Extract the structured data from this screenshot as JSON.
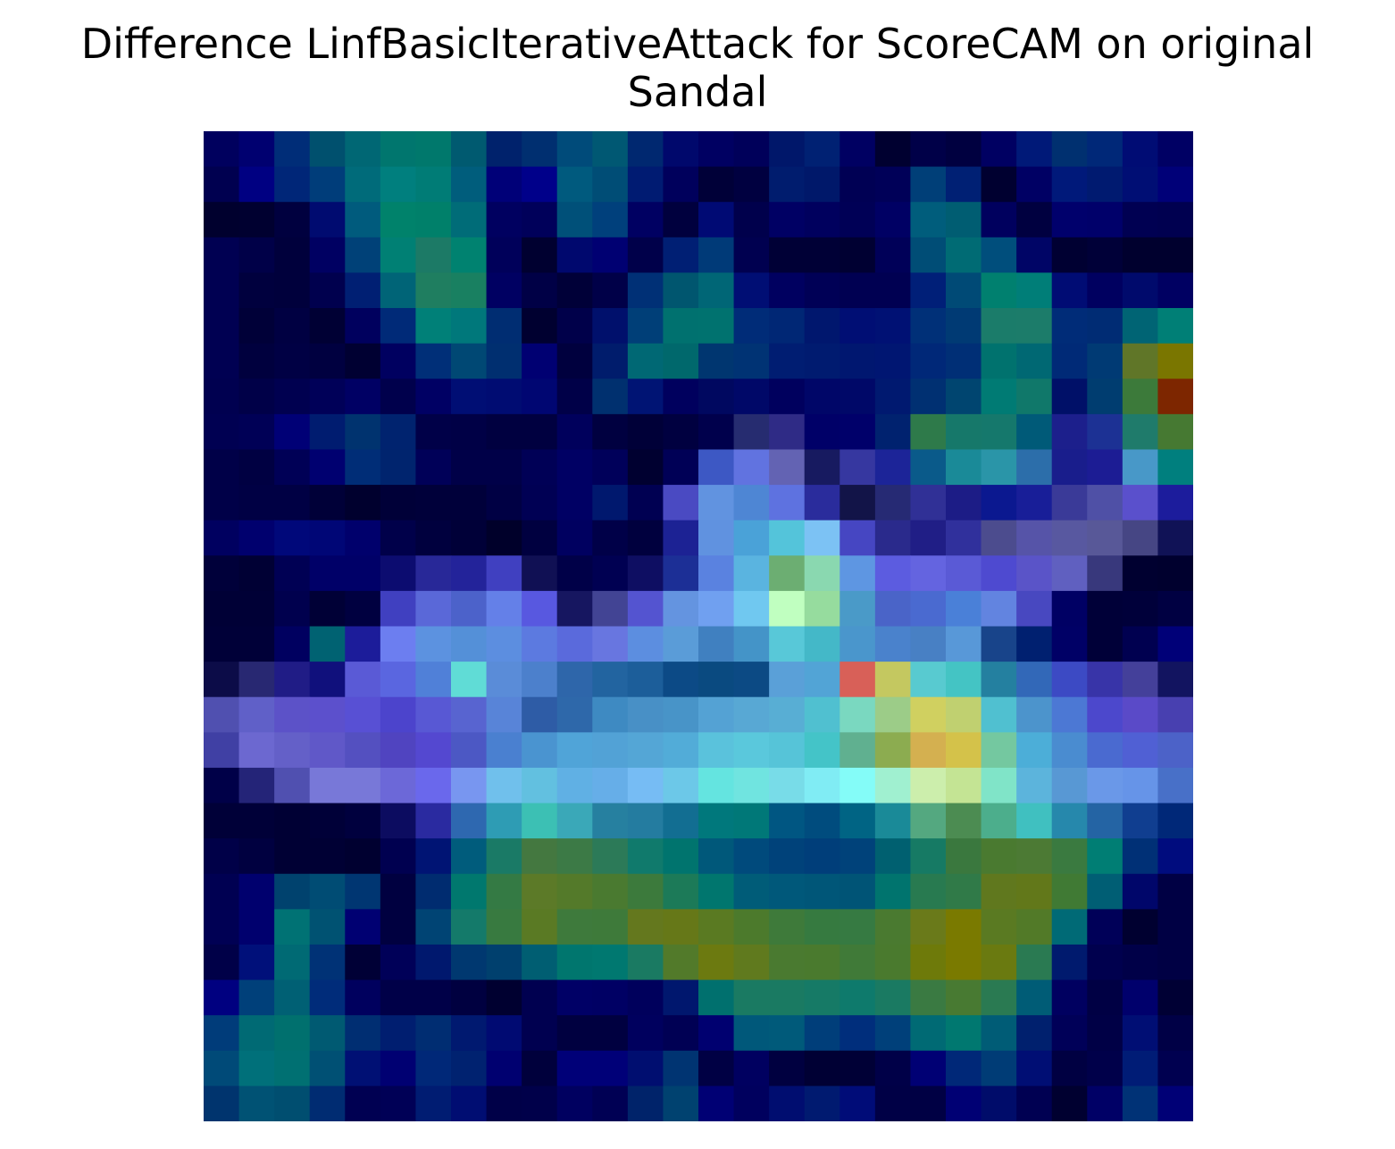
{
  "chart_data": {
    "type": "heatmap",
    "title_lines": [
      "Difference LinfBasicIterativeAttack for ScoreCAM on original",
      "Sandal"
    ],
    "rows": 28,
    "cols": 28,
    "axes_visible": false,
    "colormap": "dark-blue overlay heatmap (low = dark navy, mid = teal/cyan, high = yellow/red)",
    "cells": [
      [
        "#00005e",
        "#000070",
        "#002d78",
        "#00506e",
        "#006774",
        "#00766e",
        "#00786c",
        "#005a70",
        "#00226c",
        "#002f70",
        "#004b7a",
        "#005873",
        "#002870",
        "#00086c",
        "#000062",
        "#00005a",
        "#00176a",
        "#002173",
        "#000062",
        "#000030",
        "#000048",
        "#000040",
        "#000062",
        "#001978",
        "#003070",
        "#002878",
        "#000c74",
        "#000064"
      ],
      [
        "#000050",
        "#000082",
        "#002678",
        "#003d7a",
        "#006b7a",
        "#007f7e",
        "#007c76",
        "#005d7c",
        "#000078",
        "#00008a",
        "#005a7e",
        "#004d76",
        "#001b72",
        "#00005c",
        "#000038",
        "#000040",
        "#001c6e",
        "#00186a",
        "#000054",
        "#000058",
        "#003f78",
        "#002074",
        "#000030",
        "#000064",
        "#00197a",
        "#001a70",
        "#000e74",
        "#000078"
      ],
      [
        "#00002e",
        "#000030",
        "#00003f",
        "#000b70",
        "#005b7d",
        "#00826b",
        "#00806a",
        "#006c78",
        "#000060",
        "#00005a",
        "#005079",
        "#00407c",
        "#000062",
        "#00003e",
        "#000a74",
        "#00004c",
        "#000064",
        "#00005e",
        "#000056",
        "#000064",
        "#005d7c",
        "#005d72",
        "#00005e",
        "#000040",
        "#00006c",
        "#00006a",
        "#000052",
        "#000050"
      ],
      [
        "#000052",
        "#000048",
        "#00003c",
        "#000062",
        "#004178",
        "#008074",
        "#1c7a66",
        "#008270",
        "#00005a",
        "#000030",
        "#00086e",
        "#000072",
        "#00004a",
        "#001f74",
        "#003a78",
        "#000050",
        "#000036",
        "#000036",
        "#000032",
        "#000058",
        "#004d76",
        "#006b74",
        "#004e7c",
        "#000566",
        "#000032",
        "#000038",
        "#00002e",
        "#00002e"
      ],
      [
        "#000052",
        "#00003e",
        "#00003c",
        "#00004e",
        "#001f73",
        "#006477",
        "#1f7e60",
        "#198061",
        "#000062",
        "#000046",
        "#000038",
        "#000048",
        "#003076",
        "#00566f",
        "#006676",
        "#000e74",
        "#000060",
        "#000056",
        "#000052",
        "#000052",
        "#001f78",
        "#004a76",
        "#00806f",
        "#007e78",
        "#000c74",
        "#000060",
        "#000a6c",
        "#000062"
      ],
      [
        "#000052",
        "#000038",
        "#000042",
        "#000034",
        "#00005e",
        "#002a78",
        "#008078",
        "#00787b",
        "#002d72",
        "#000030",
        "#00004a",
        "#00106c",
        "#003f78",
        "#00716f",
        "#00726f",
        "#002c78",
        "#002775",
        "#00176e",
        "#000e74",
        "#001174",
        "#003078",
        "#003a74",
        "#1b7c6a",
        "#1c7c6a",
        "#002c78",
        "#002c74",
        "#006474",
        "#007f76"
      ],
      [
        "#000052",
        "#00003e",
        "#000044",
        "#000040",
        "#000032",
        "#000060",
        "#002f78",
        "#004874",
        "#002f70",
        "#000072",
        "#00003e",
        "#001c6c",
        "#006874",
        "#00686c",
        "#003670",
        "#003374",
        "#001d72",
        "#001b70",
        "#001770",
        "#001672",
        "#002878",
        "#002f76",
        "#00726e",
        "#006873",
        "#002a77",
        "#003a74",
        "#607628",
        "#7a7600"
      ],
      [
        "#000050",
        "#000048",
        "#000050",
        "#000058",
        "#000064",
        "#00004c",
        "#000064",
        "#000e74",
        "#000c72",
        "#000672",
        "#000048",
        "#00306f",
        "#001474",
        "#00005e",
        "#000860",
        "#000868",
        "#00005e",
        "#000668",
        "#000868",
        "#001970",
        "#003072",
        "#004570",
        "#007b74",
        "#10786a",
        "#001068",
        "#003d70",
        "#3c7a3a",
        "#7d2600"
      ],
      [
        "#000052",
        "#000056",
        "#000076",
        "#001c70",
        "#00336f",
        "#00236f",
        "#000048",
        "#000046",
        "#000040",
        "#000040",
        "#00005c",
        "#000040",
        "#000038",
        "#000040",
        "#00004c",
        "#262c70",
        "#2f2b86",
        "#000068",
        "#00006a",
        "#00226f",
        "#2e7a4a",
        "#16786a",
        "#15786c",
        "#005a78",
        "#1c1f8c",
        "#1c3194",
        "#1f7b6b",
        "#467932"
      ],
      [
        "#000048",
        "#000042",
        "#000056",
        "#000070",
        "#002d77",
        "#00246e",
        "#000058",
        "#000048",
        "#000048",
        "#000056",
        "#000064",
        "#00005a",
        "#000030",
        "#000056",
        "#3d58c4",
        "#6173e0",
        "#6363b3",
        "#171a60",
        "#3637a0",
        "#1c2498",
        "#0a5a8a",
        "#1a8a98",
        "#2a95a8",
        "#2c6eaa",
        "#191d8c",
        "#1c1c94",
        "#4898c8",
        "#007f7e"
      ],
      [
        "#000048",
        "#000044",
        "#000044",
        "#000038",
        "#00002e",
        "#000038",
        "#00003a",
        "#00003a",
        "#000044",
        "#000054",
        "#000064",
        "#00186e",
        "#000052",
        "#4a4ac2",
        "#6193e0",
        "#4e86d4",
        "#5e72e0",
        "#2a2c9c",
        "#121448",
        "#262a74",
        "#303096",
        "#1c1c86",
        "#0b1890",
        "#181e98",
        "#3a3a98",
        "#4f50a6",
        "#5a50cc",
        "#1c1c9c"
      ],
      [
        "#000060",
        "#00006e",
        "#00087a",
        "#000676",
        "#00006c",
        "#00004a",
        "#00003e",
        "#000038",
        "#00002a",
        "#000040",
        "#000060",
        "#000048",
        "#00003e",
        "#1c2294",
        "#6092e0",
        "#4aa2d8",
        "#54c4da",
        "#7cc2f4",
        "#4646c2",
        "#2a2a8c",
        "#201e86",
        "#30309c",
        "#4c4c8e",
        "#5654a8",
        "#5858a0",
        "#585898",
        "#464684",
        "#101256"
      ],
      [
        "#00003a",
        "#000034",
        "#000054",
        "#000068",
        "#000068",
        "#0c0c70",
        "#282898",
        "#23239a",
        "#4040c0",
        "#101054",
        "#000048",
        "#000052",
        "#0e0e62",
        "#1c2f96",
        "#5a82e0",
        "#5ab4e0",
        "#6cae72",
        "#8ad8b0",
        "#5e96e2",
        "#5c5ce0",
        "#6464e0",
        "#5a5ad6",
        "#4e4ad0",
        "#5a54c8",
        "#6060c0",
        "#38387c",
        "#000030",
        "#00002e"
      ],
      [
        "#000036",
        "#000036",
        "#00004e",
        "#000036",
        "#000040",
        "#4040c0",
        "#5a68d8",
        "#4c62ca",
        "#6480e8",
        "#5858e0",
        "#161660",
        "#424494",
        "#5454d0",
        "#6494e0",
        "#70a0f0",
        "#70c8f0",
        "#c0ffc0",
        "#96dc9e",
        "#4a9ac8",
        "#4a64c8",
        "#4a6ad0",
        "#4a80d8",
        "#6284e0",
        "#4848c0",
        "#000064",
        "#000038",
        "#00003a",
        "#000042"
      ],
      [
        "#000038",
        "#000038",
        "#000060",
        "#006272",
        "#1c1c9a",
        "#6c7ef0",
        "#5c92e0",
        "#5490d8",
        "#5c8ee0",
        "#5c7ae0",
        "#5a6adc",
        "#6876e0",
        "#5c8ee0",
        "#5a9cd8",
        "#4080c0",
        "#4494c8",
        "#58c8d8",
        "#44b8c8",
        "#4a96cc",
        "#4a82cc",
        "#4880c4",
        "#5898d8",
        "#18448a",
        "#002070",
        "#000066",
        "#000038",
        "#000050",
        "#000078"
      ],
      [
        "#0c0c48",
        "#282872",
        "#201c86",
        "#10107c",
        "#5a5ad6",
        "#5a66e0",
        "#5080d8",
        "#60dcd6",
        "#5a8cd8",
        "#4c80cc",
        "#2e66aa",
        "#2264a0",
        "#1c5e9a",
        "#0c4a86",
        "#0a4a80",
        "#0c4a84",
        "#5aa0d8",
        "#52a4d6",
        "#d86058",
        "#c4c860",
        "#58cad0",
        "#44c4c4",
        "#2480a0",
        "#3268b8",
        "#3c4ac4",
        "#3834a8",
        "#44409a",
        "#121460"
      ],
      [
        "#5050b0",
        "#6060c8",
        "#5c52c8",
        "#5c50cc",
        "#5850d4",
        "#4c44cc",
        "#5858d4",
        "#5864d0",
        "#5884d8",
        "#2e5ca6",
        "#2e68aa",
        "#3e8ac2",
        "#4890c6",
        "#4894c8",
        "#54a2d4",
        "#58a8d4",
        "#58aed4",
        "#50c0d0",
        "#7ad8c0",
        "#9ccc88",
        "#d0d060",
        "#c0d070",
        "#50c0d0",
        "#4c94cc",
        "#4c78d4",
        "#4c48cc",
        "#5a4ac8",
        "#4840b0"
      ],
      [
        "#4040a4",
        "#6c68d0",
        "#6460c8",
        "#6058c8",
        "#5450c0",
        "#5044c0",
        "#5448d0",
        "#4c58c4",
        "#4a80d0",
        "#4a94d0",
        "#50a4d8",
        "#52a2d6",
        "#54a6d6",
        "#52acd8",
        "#5ac2dc",
        "#5ac8dc",
        "#56c4d8",
        "#44c4c8",
        "#60b090",
        "#8cac50",
        "#d4b050",
        "#d4c24a",
        "#74c8a0",
        "#4caed8",
        "#4a8cd0",
        "#4a6ad0",
        "#5060d4",
        "#4c62c8"
      ],
      [
        "#000048",
        "#242478",
        "#5050b0",
        "#7878d8",
        "#7878d8",
        "#6c68d8",
        "#6a68ec",
        "#7896f0",
        "#70c0ec",
        "#62c0e0",
        "#60b0e4",
        "#66aee8",
        "#76bcf4",
        "#6cc8e8",
        "#64e4e0",
        "#70e4e0",
        "#78dce8",
        "#80ecf4",
        "#84fcf8",
        "#a0f0d0",
        "#cceeac",
        "#c4e494",
        "#80e4c8",
        "#5cb4dc",
        "#5898d4",
        "#6a98e8",
        "#6694e8",
        "#4870c8"
      ],
      [
        "#000038",
        "#000038",
        "#000034",
        "#000038",
        "#00003e",
        "#0c0c60",
        "#2a2aa0",
        "#2e68b0",
        "#2e9cb4",
        "#3cc0b4",
        "#3aa8b8",
        "#2680a0",
        "#247ca0",
        "#126e92",
        "#00787c",
        "#007878",
        "#005682",
        "#004c7e",
        "#006484",
        "#1a8a98",
        "#54a880",
        "#4c8c52",
        "#4cae8c",
        "#40c0c0",
        "#2688ac",
        "#2464a4",
        "#103e90",
        "#002878"
      ],
      [
        "#000048",
        "#000040",
        "#000034",
        "#000034",
        "#000030",
        "#000050",
        "#001474",
        "#005c7c",
        "#1a7a66",
        "#447840",
        "#3c7a46",
        "#2c7a58",
        "#107a6c",
        "#00746e",
        "#00587a",
        "#004a7c",
        "#00427a",
        "#003e7a",
        "#00427a",
        "#006070",
        "#167a64",
        "#3a783e",
        "#4a7a30",
        "#4c7a34",
        "#3a7a40",
        "#007e74",
        "#003076",
        "#000c7e"
      ],
      [
        "#000052",
        "#00006e",
        "#00426e",
        "#004c74",
        "#003672",
        "#000040",
        "#002c70",
        "#00786e",
        "#347a44",
        "#5c7a28",
        "#547a2a",
        "#4a7a30",
        "#3c7a3c",
        "#1c7a58",
        "#00766e",
        "#005c78",
        "#00587a",
        "#005678",
        "#005476",
        "#00746e",
        "#287a50",
        "#307a48",
        "#60781e",
        "#62781a",
        "#407a34",
        "#005e74",
        "#00066a",
        "#000044"
      ],
      [
        "#000054",
        "#00006e",
        "#007274",
        "#005272",
        "#000072",
        "#000040",
        "#004474",
        "#147a6a",
        "#387a40",
        "#5a7a24",
        "#3e7a3c",
        "#3e7a3a",
        "#64781e",
        "#667818",
        "#5a7a22",
        "#4c7a2c",
        "#3e7a3a",
        "#367a40",
        "#367a42",
        "#4a7a30",
        "#6a7a1a",
        "#7a7a00",
        "#5a7a22",
        "#527a28",
        "#006a76",
        "#000058",
        "#000030",
        "#000044"
      ],
      [
        "#000048",
        "#00107a",
        "#006a74",
        "#003276",
        "#000036",
        "#000058",
        "#00186e",
        "#003870",
        "#00406e",
        "#005e72",
        "#00766e",
        "#007870",
        "#1a7a62",
        "#527a2a",
        "#6c7a10",
        "#607a1e",
        "#4a7a30",
        "#4a7a2e",
        "#407a38",
        "#4a7a2e",
        "#6e7a0a",
        "#7a7a00",
        "#6a7a10",
        "#2a7a52",
        "#001a6e",
        "#00004e",
        "#000048",
        "#000044"
      ],
      [
        "#000080",
        "#00407a",
        "#006074",
        "#002c7a",
        "#00005e",
        "#000048",
        "#000048",
        "#000040",
        "#000030",
        "#000050",
        "#000066",
        "#000064",
        "#00005c",
        "#00176e",
        "#00706e",
        "#1a7a62",
        "#1a7a62",
        "#167a66",
        "#0e7a6c",
        "#1a7a62",
        "#3a7a42",
        "#487a32",
        "#2a7a52",
        "#005c76",
        "#000060",
        "#000044",
        "#00006c",
        "#000034"
      ],
      [
        "#003c7a",
        "#006a74",
        "#00706e",
        "#005a72",
        "#002e72",
        "#001e70",
        "#002d72",
        "#001970",
        "#000a72",
        "#000050",
        "#000040",
        "#000040",
        "#00005e",
        "#000054",
        "#000070",
        "#00587a",
        "#005a7a",
        "#003e7a",
        "#002e7c",
        "#00407a",
        "#006a74",
        "#007870",
        "#005c76",
        "#00206e",
        "#000058",
        "#000046",
        "#000e74",
        "#000046"
      ],
      [
        "#004a78",
        "#00707a",
        "#007072",
        "#005074",
        "#001074",
        "#000072",
        "#002878",
        "#002270",
        "#000070",
        "#00003c",
        "#000078",
        "#000078",
        "#000e70",
        "#003472",
        "#000044",
        "#000060",
        "#000040",
        "#000034",
        "#000036",
        "#000048",
        "#000074",
        "#002878",
        "#003c76",
        "#000e74",
        "#000042",
        "#00004a",
        "#001c76",
        "#000050"
      ],
      [
        "#00346e",
        "#005274",
        "#004e70",
        "#002c72",
        "#000052",
        "#000056",
        "#001c72",
        "#000d72",
        "#000048",
        "#00004a",
        "#000060",
        "#000054",
        "#00236a",
        "#004270",
        "#000074",
        "#00005e",
        "#000d70",
        "#001a70",
        "#000c78",
        "#000046",
        "#000044",
        "#000074",
        "#000c6a",
        "#000052",
        "#000030",
        "#000066",
        "#003276",
        "#000076"
      ]
    ]
  }
}
